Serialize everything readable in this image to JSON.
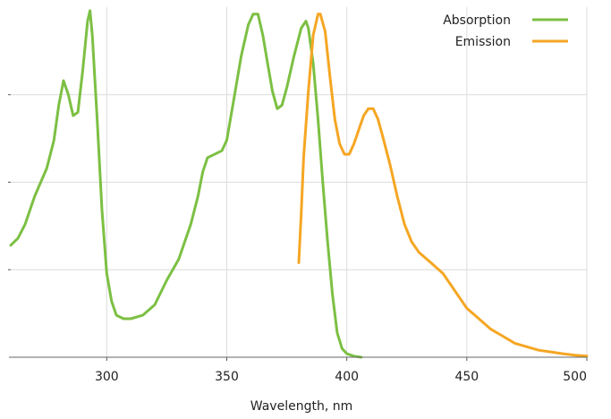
{
  "chart_data": {
    "type": "line",
    "title": "",
    "xlabel": "Wavelength, nm",
    "ylabel": "",
    "xlim": [
      260,
      500
    ],
    "ylim": [
      0,
      1
    ],
    "grid": true,
    "legend": "top-right",
    "x_ticks": [
      "300",
      "350",
      "400",
      "450",
      "500"
    ],
    "x_tick_values": [
      300,
      350,
      400,
      450,
      500
    ],
    "y_tick_values": [
      0.25,
      0.5,
      0.75
    ],
    "series": [
      {
        "name": "Absorption",
        "color": "#7cc043",
        "points": [
          [
            260,
            0.32
          ],
          [
            263,
            0.34
          ],
          [
            266,
            0.38
          ],
          [
            270,
            0.46
          ],
          [
            275,
            0.54
          ],
          [
            278,
            0.62
          ],
          [
            280,
            0.72
          ],
          [
            282,
            0.79
          ],
          [
            284,
            0.75
          ],
          [
            286,
            0.69
          ],
          [
            288,
            0.7
          ],
          [
            290,
            0.82
          ],
          [
            292,
            0.96
          ],
          [
            293,
            0.99
          ],
          [
            294,
            0.92
          ],
          [
            296,
            0.68
          ],
          [
            298,
            0.42
          ],
          [
            300,
            0.24
          ],
          [
            302,
            0.16
          ],
          [
            304,
            0.12
          ],
          [
            307,
            0.11
          ],
          [
            310,
            0.11
          ],
          [
            315,
            0.12
          ],
          [
            320,
            0.15
          ],
          [
            325,
            0.22
          ],
          [
            330,
            0.28
          ],
          [
            335,
            0.38
          ],
          [
            338,
            0.46
          ],
          [
            340,
            0.53
          ],
          [
            342,
            0.57
          ],
          [
            345,
            0.58
          ],
          [
            348,
            0.59
          ],
          [
            350,
            0.62
          ],
          [
            353,
            0.74
          ],
          [
            356,
            0.86
          ],
          [
            359,
            0.95
          ],
          [
            361,
            0.98
          ],
          [
            363,
            0.98
          ],
          [
            365,
            0.92
          ],
          [
            367,
            0.84
          ],
          [
            369,
            0.76
          ],
          [
            371,
            0.71
          ],
          [
            373,
            0.72
          ],
          [
            375,
            0.77
          ],
          [
            378,
            0.86
          ],
          [
            381,
            0.94
          ],
          [
            383,
            0.96
          ],
          [
            384,
            0.94
          ],
          [
            386,
            0.84
          ],
          [
            388,
            0.68
          ],
          [
            390,
            0.5
          ],
          [
            392,
            0.33
          ],
          [
            394,
            0.18
          ],
          [
            396,
            0.07
          ],
          [
            398,
            0.025
          ],
          [
            400,
            0.01
          ],
          [
            403,
            0.003
          ],
          [
            406,
            0.0
          ]
        ]
      },
      {
        "name": "Emission",
        "color": "#f5a623",
        "points": [
          [
            380,
            0.27
          ],
          [
            381,
            0.41
          ],
          [
            382,
            0.57
          ],
          [
            384,
            0.76
          ],
          [
            386,
            0.92
          ],
          [
            388,
            0.98
          ],
          [
            389,
            0.98
          ],
          [
            391,
            0.93
          ],
          [
            393,
            0.8
          ],
          [
            395,
            0.68
          ],
          [
            397,
            0.61
          ],
          [
            399,
            0.58
          ],
          [
            401,
            0.58
          ],
          [
            403,
            0.61
          ],
          [
            405,
            0.65
          ],
          [
            407,
            0.69
          ],
          [
            409,
            0.71
          ],
          [
            411,
            0.71
          ],
          [
            413,
            0.68
          ],
          [
            415,
            0.63
          ],
          [
            418,
            0.55
          ],
          [
            421,
            0.46
          ],
          [
            424,
            0.38
          ],
          [
            427,
            0.33
          ],
          [
            430,
            0.3
          ],
          [
            435,
            0.27
          ],
          [
            440,
            0.24
          ],
          [
            445,
            0.19
          ],
          [
            450,
            0.14
          ],
          [
            455,
            0.11
          ],
          [
            460,
            0.08
          ],
          [
            465,
            0.06
          ],
          [
            470,
            0.04
          ],
          [
            475,
            0.03
          ],
          [
            480,
            0.02
          ],
          [
            485,
            0.015
          ],
          [
            490,
            0.01
          ],
          [
            495,
            0.006
          ],
          [
            500,
            0.003
          ]
        ]
      }
    ]
  }
}
